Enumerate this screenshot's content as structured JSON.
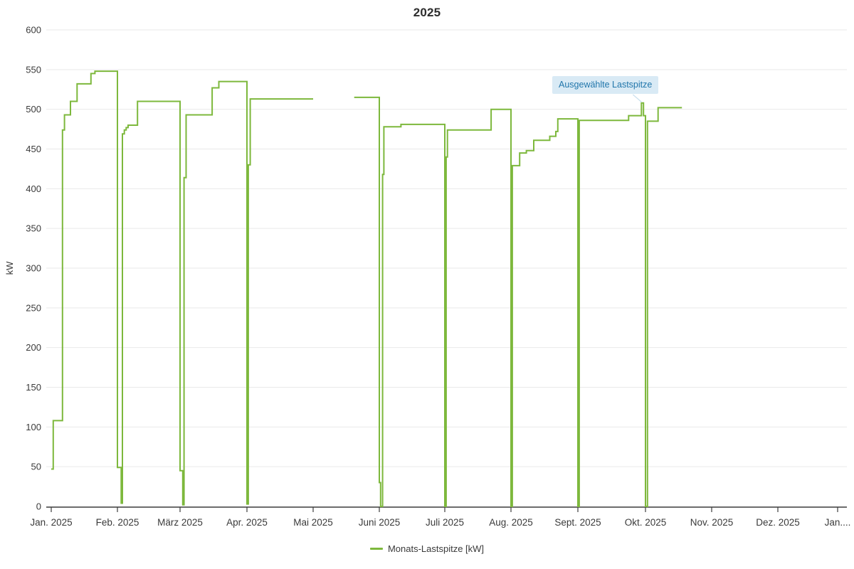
{
  "header": {
    "title": "2025"
  },
  "tooltip": {
    "text": "Ausgewählte Lastspitze"
  },
  "legend": {
    "items": [
      {
        "label": "Monats-Lastspitze [kW]",
        "color": "#7db83c"
      }
    ]
  },
  "colors": {
    "line": "#7db83c",
    "grid": "#e9e9e9",
    "axis": "#3c3c3c",
    "text": "#3a3a3a",
    "title": "#2d2d2d",
    "tooltip_bg": "#d9eaf5",
    "tooltip_text": "#2176ab",
    "callout": "#c9dfee",
    "background": "#ffffff"
  },
  "chart_data": {
    "type": "line",
    "title": "2025",
    "xlabel": "",
    "ylabel": "kW",
    "ylim": [
      0,
      600
    ],
    "y_ticks": [
      0,
      50,
      100,
      150,
      200,
      250,
      300,
      350,
      400,
      450,
      500,
      550,
      600
    ],
    "x_tick_labels": [
      "Jan. 2025",
      "Feb. 2025",
      "März 2025",
      "Apr. 2025",
      "Mai 2025",
      "Juni 2025",
      "Juli 2025",
      "Aug. 2025",
      "Sept. 2025",
      "Okt. 2025",
      "Nov. 2025",
      "Dez. 2025",
      "Jan...."
    ],
    "grid": true,
    "legend_position": "bottom",
    "legend_entries": [
      "Monats-Lastspitze [kW]"
    ],
    "step_mode": "after",
    "x_unit": "month fraction, 0 = 1. Jan 2025; values in kW; gap between segments = missing data (Anfang Mai)",
    "series": [
      {
        "name": "Monats-Lastspitze [kW]",
        "color": "#7db83c",
        "segments": [
          [
            [
              0.0,
              47
            ],
            [
              0.03,
              108
            ],
            [
              0.17,
              474
            ],
            [
              0.2,
              493
            ],
            [
              0.29,
              510
            ],
            [
              0.39,
              532
            ],
            [
              0.6,
              545
            ],
            [
              0.66,
              548
            ],
            [
              1.0,
              49
            ],
            [
              1.06,
              4
            ],
            [
              1.08,
              469
            ],
            [
              1.11,
              474
            ],
            [
              1.14,
              477
            ],
            [
              1.17,
              480
            ],
            [
              1.32,
              510
            ],
            [
              2.0,
              45
            ],
            [
              2.04,
              2
            ],
            [
              2.06,
              414
            ],
            [
              2.09,
              493
            ],
            [
              2.48,
              527
            ],
            [
              2.58,
              535
            ],
            [
              3.0,
              3
            ],
            [
              3.02,
              430
            ],
            [
              3.05,
              513
            ],
            [
              4.0,
              513
            ]
          ],
          [
            [
              4.62,
              515
            ],
            [
              5.0,
              30
            ],
            [
              5.02,
              0
            ],
            [
              5.05,
              418
            ],
            [
              5.07,
              478
            ],
            [
              5.33,
              481
            ],
            [
              6.0,
              0
            ],
            [
              6.02,
              440
            ],
            [
              6.04,
              474
            ],
            [
              6.7,
              500
            ],
            [
              7.0,
              0
            ],
            [
              7.02,
              429
            ],
            [
              7.13,
              445
            ],
            [
              7.23,
              448
            ],
            [
              7.34,
              461
            ],
            [
              7.58,
              466
            ],
            [
              7.67,
              472
            ],
            [
              7.7,
              488
            ],
            [
              8.0,
              0
            ],
            [
              8.02,
              486
            ],
            [
              8.75,
              492
            ],
            [
              8.94,
              508
            ],
            [
              8.97,
              492
            ],
            [
              9.0,
              0
            ],
            [
              9.03,
              485
            ],
            [
              9.19,
              502
            ],
            [
              9.55,
              502
            ]
          ]
        ]
      }
    ],
    "annotation": {
      "text": "Ausgewählte Lastspitze",
      "target": {
        "x_month_fraction": 8.94,
        "kw": 508
      }
    }
  }
}
